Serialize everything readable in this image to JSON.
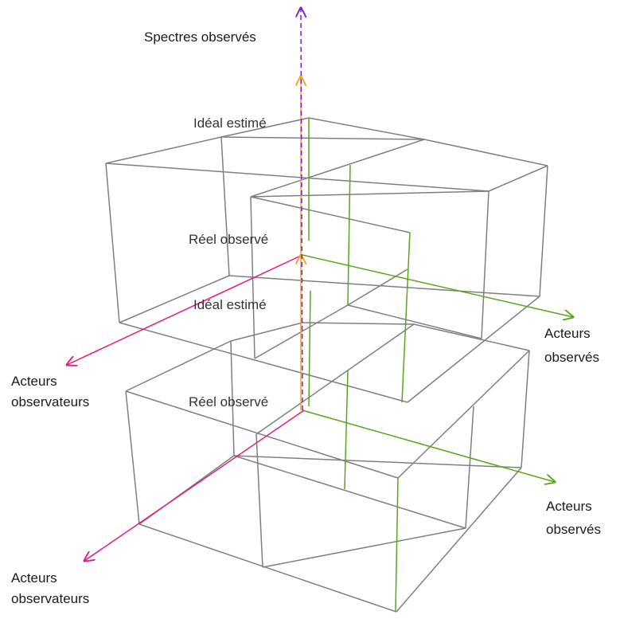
{
  "labels": {
    "spectres": "Spectres observés",
    "ideal_top": "Idéal estimé",
    "reel_top": "Réel observé",
    "ideal_bottom": "Idéal estimé",
    "reel_bottom": "Réel observé",
    "acteurs_observes_top_1": "Acteurs",
    "acteurs_observes_top_2": "observés",
    "acteurs_observes_bottom_1": "Acteurs",
    "acteurs_observes_bottom_2": "observés",
    "observateurs_top_1": "Acteurs",
    "observateurs_top_2": "observateurs",
    "observateurs_bottom_1": "Acteurs",
    "observateurs_bottom_2": "observateurs"
  },
  "colors": {
    "cube": "#7f7f7f",
    "green": "#5aa51e",
    "magenta": "#e6197f",
    "purple": "#7a1fd0",
    "orange": "#f5a21e",
    "text": "#1a1a1a"
  }
}
